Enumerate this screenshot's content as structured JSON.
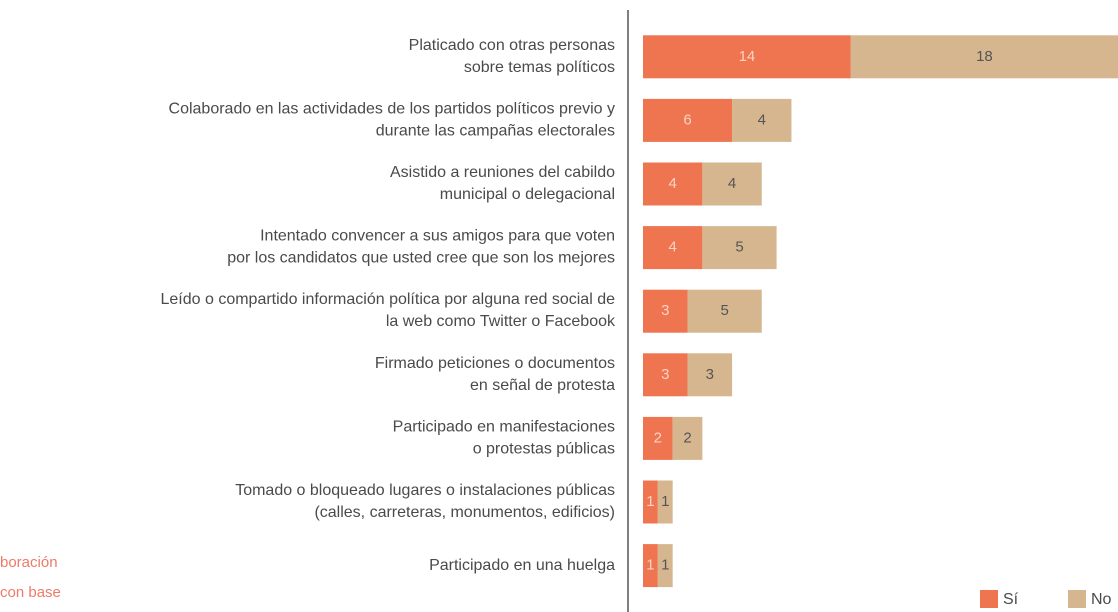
{
  "chart_data": {
    "type": "stacked_barh",
    "categories": [
      "Platicado con otras personas\nsobre temas políticos",
      "Colaborado en las actividades de los partidos políticos previo y\ndurante las campañas electorales",
      "Asistido a reuniones del cabildo\nmunicipal o delegacional",
      "Intentado convencer a sus amigos para que voten\npor los candidatos que usted cree que son los mejores",
      "Leído o compartido información política por alguna red social de\nla web como Twitter o Facebook",
      "Firmado peticiones o documentos\nen señal de protesta",
      "Participado en manifestaciones\no protestas públicas",
      "Tomado o bloqueado lugares o instalaciones públicas\n(calles, carreteras, monumentos, edificios)",
      "Participado en una huelga"
    ],
    "series": [
      {
        "name": "Sí",
        "color": "#ee7550",
        "values": [
          14,
          6,
          4,
          4,
          3,
          3,
          2,
          1,
          1
        ]
      },
      {
        "name": "No",
        "color": "#d6b68e",
        "values": [
          18,
          4,
          4,
          5,
          5,
          3,
          2,
          1,
          1
        ]
      }
    ],
    "xlim": [
      0,
      32
    ],
    "notes": [
      "boración",
      "con base"
    ],
    "legend": "bottom-right"
  }
}
